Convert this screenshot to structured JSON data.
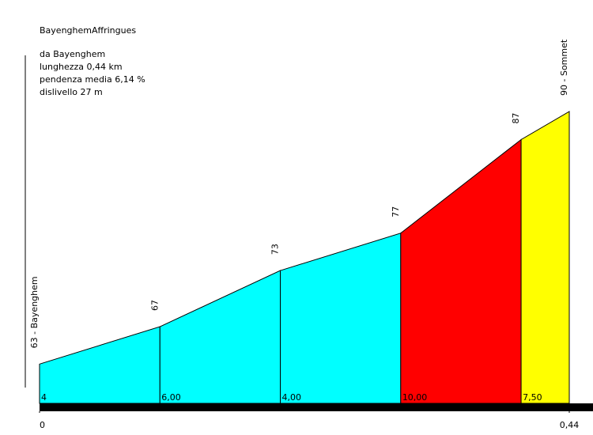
{
  "chart_data": {
    "type": "profile",
    "title": "BayenghemAffringues",
    "annotations": [
      "da Bayenghem",
      "lunghezza 0,44 km",
      "pendenza media 6,14 %",
      "dislivello 27 m"
    ],
    "x": [
      0,
      0.1,
      0.2,
      0.3,
      0.4,
      0.44
    ],
    "values": [
      63,
      67,
      73,
      77,
      87,
      90
    ],
    "value_labels": [
      "63 - Bayenghem",
      "67",
      "73",
      "77",
      "87",
      "90 - Sommet"
    ],
    "segments": {
      "values": [
        4,
        6,
        4,
        10,
        7.5
      ],
      "value_labels": [
        "4",
        "6,00",
        "4,00",
        "10,00",
        "7,50"
      ],
      "colors": [
        "#00ffff",
        "#00ffff",
        "#00ffff",
        "#ff0000",
        "#ffff00"
      ]
    },
    "xlim": [
      0,
      0.44
    ],
    "xticks": [
      0,
      {
        "value": 0.44,
        "label": "0,44"
      }
    ],
    "ylim": [
      58.8,
      90
    ]
  }
}
